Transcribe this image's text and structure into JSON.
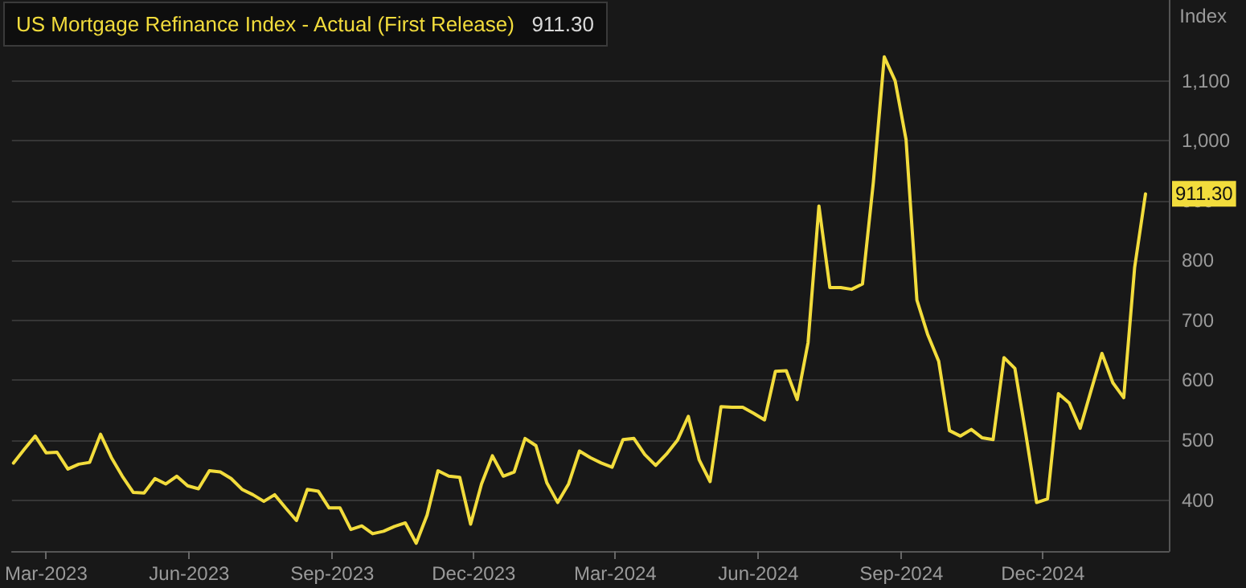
{
  "chart_data": {
    "type": "line",
    "title": "US Mortgage Refinance Index - Actual (First Release)",
    "ylabel": "Index",
    "x": [
      "2023-02-08",
      "2023-02-15",
      "2023-02-22",
      "2023-03-01",
      "2023-03-08",
      "2023-03-15",
      "2023-03-22",
      "2023-03-29",
      "2023-04-05",
      "2023-04-12",
      "2023-04-19",
      "2023-04-26",
      "2023-05-03",
      "2023-05-10",
      "2023-05-17",
      "2023-05-24",
      "2023-05-31",
      "2023-06-07",
      "2023-06-14",
      "2023-06-21",
      "2023-06-28",
      "2023-07-05",
      "2023-07-12",
      "2023-07-19",
      "2023-07-26",
      "2023-08-02",
      "2023-08-09",
      "2023-08-16",
      "2023-08-23",
      "2023-08-30",
      "2023-09-06",
      "2023-09-13",
      "2023-09-20",
      "2023-09-27",
      "2023-10-04",
      "2023-10-11",
      "2023-10-18",
      "2023-10-25",
      "2023-11-01",
      "2023-11-08",
      "2023-11-15",
      "2023-11-22",
      "2023-11-29",
      "2023-12-06",
      "2023-12-13",
      "2023-12-20",
      "2023-12-27",
      "2024-01-03",
      "2024-01-10",
      "2024-01-17",
      "2024-01-24",
      "2024-01-31",
      "2024-02-07",
      "2024-02-14",
      "2024-02-21",
      "2024-02-28",
      "2024-03-06",
      "2024-03-13",
      "2024-03-20",
      "2024-03-27",
      "2024-04-03",
      "2024-04-10",
      "2024-04-17",
      "2024-04-24",
      "2024-05-01",
      "2024-05-08",
      "2024-05-15",
      "2024-05-22",
      "2024-05-29",
      "2024-06-05",
      "2024-06-12",
      "2024-06-19",
      "2024-06-26",
      "2024-07-03",
      "2024-07-10",
      "2024-07-17",
      "2024-07-24",
      "2024-07-31",
      "2024-08-07",
      "2024-08-14",
      "2024-08-21",
      "2024-08-28",
      "2024-09-04",
      "2024-09-11",
      "2024-09-18",
      "2024-09-25",
      "2024-10-02",
      "2024-10-09",
      "2024-10-16",
      "2024-10-23",
      "2024-10-30",
      "2024-11-06",
      "2024-11-13",
      "2024-11-20",
      "2024-11-27",
      "2024-12-04",
      "2024-12-11",
      "2024-12-18",
      "2024-12-25",
      "2025-01-01",
      "2025-01-08",
      "2025-01-15",
      "2025-01-22",
      "2025-01-29",
      "2025-02-05"
    ],
    "series": [
      {
        "color": "#f2dc3c",
        "values": [
          462,
          485,
          507,
          479,
          480,
          452,
          460,
          463,
          510,
          471,
          440,
          413,
          412,
          436,
          427,
          440,
          424,
          419,
          449,
          447,
          436,
          418,
          409,
          398,
          409,
          387,
          366,
          418,
          415,
          387,
          387,
          351,
          357,
          344,
          348,
          356,
          362,
          328,
          375,
          449,
          440,
          438,
          360,
          427,
          474,
          440,
          447,
          503,
          491,
          429,
          396,
          427,
          482,
          471,
          462,
          455,
          501,
          503,
          476,
          458,
          477,
          500,
          540,
          467,
          431,
          556,
          555,
          555,
          545,
          534,
          615,
          616,
          568,
          663,
          891,
          755,
          755,
          752,
          761,
          931,
          1140,
          1100,
          1002,
          734,
          676,
          632,
          516,
          507,
          518,
          504,
          501,
          638,
          620,
          511,
          396,
          402,
          578,
          562,
          520,
          583,
          645,
          596,
          571,
          788,
          911.3
        ]
      }
    ],
    "xlim": [
      "2023-02-07",
      "2025-02-20"
    ],
    "ylim": [
      315,
      1235
    ],
    "xticks": [
      {
        "value": "2023-03-01",
        "label": "Mar-2023"
      },
      {
        "value": "2023-06-01",
        "label": "Jun-2023"
      },
      {
        "value": "2023-09-01",
        "label": "Sep-2023"
      },
      {
        "value": "2023-12-01",
        "label": "Dec-2023"
      },
      {
        "value": "2024-03-01",
        "label": "Mar-2024"
      },
      {
        "value": "2024-06-01",
        "label": "Jun-2024"
      },
      {
        "value": "2024-09-01",
        "label": "Sep-2024"
      },
      {
        "value": "2024-12-01",
        "label": "Dec-2024"
      }
    ],
    "yticks": [
      400,
      500,
      600,
      700,
      800,
      900,
      {
        "value": 1000,
        "label": "1,000"
      },
      {
        "value": 1100,
        "label": "1,100"
      }
    ],
    "annotations": [
      "911.30",
      {
        "text": "911.30",
        "x": "2025-02-05",
        "y": 911.3
      }
    ],
    "grid": "y",
    "marker": "none",
    "line_style": "solid"
  }
}
